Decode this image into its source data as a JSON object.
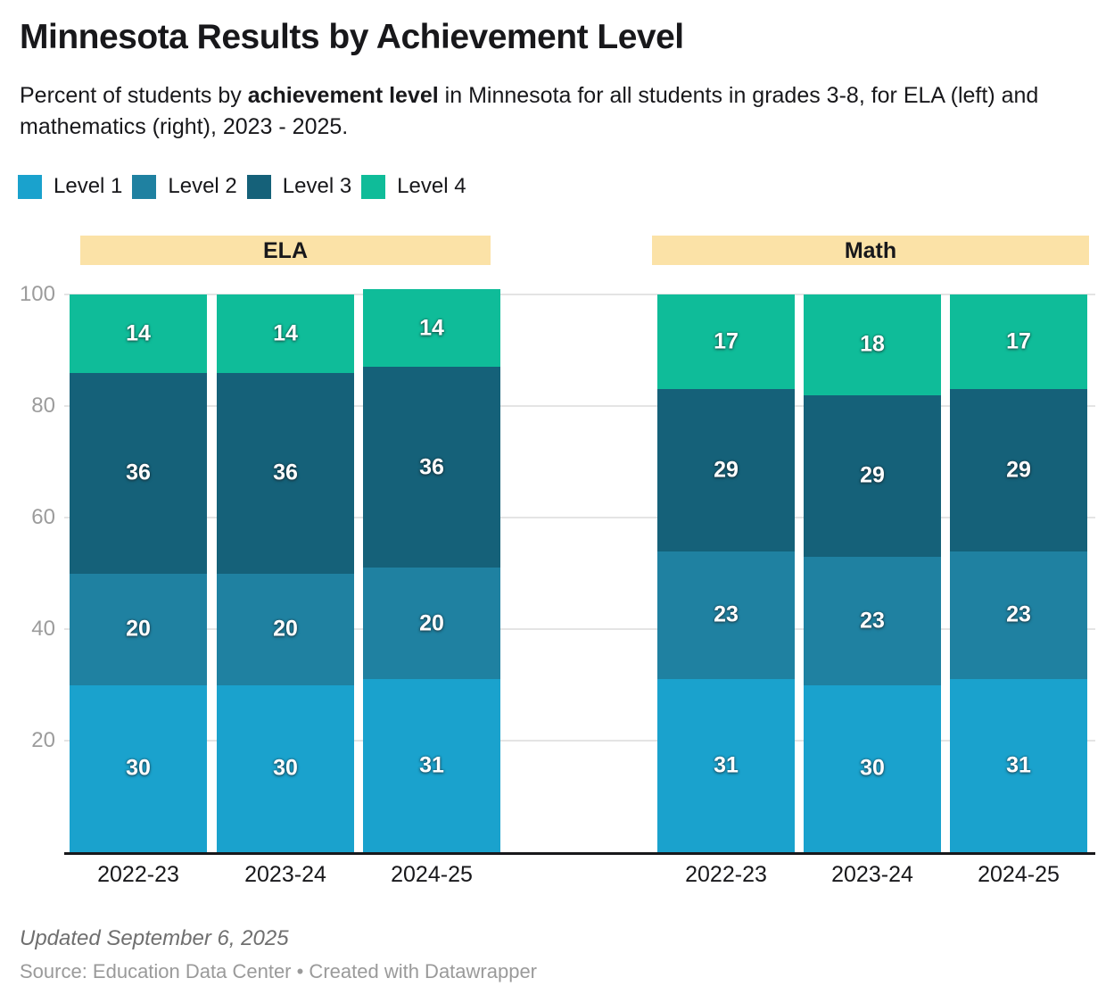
{
  "header": {
    "title": "Minnesota Results by Achievement Level",
    "subtitle_prefix": "Percent of students by ",
    "subtitle_bold": "achievement level",
    "subtitle_suffix": " in Minnesota for all students in grades 3-8, for ELA (left) and mathematics (right), 2023 - 2025."
  },
  "legend": {
    "items": [
      {
        "label": "Level 1",
        "color": "#1aa2cd"
      },
      {
        "label": "Level 2",
        "color": "#1f81a1"
      },
      {
        "label": "Level 3",
        "color": "#156179"
      },
      {
        "label": "Level 4",
        "color": "#0fbc99"
      }
    ]
  },
  "footer": {
    "updated": "Updated September 6, 2025",
    "source": "Source: Education Data Center • Created with Datawrapper"
  },
  "chart_data": {
    "type": "bar",
    "stacked": true,
    "title": "Minnesota Results by Achievement Level",
    "xlabel": "",
    "ylabel": "",
    "ylim": [
      0,
      100
    ],
    "yticks": [
      20,
      40,
      60,
      80,
      100
    ],
    "grid": true,
    "legend_position": "top",
    "panel_header_color": "#fbe2a7",
    "panels": [
      {
        "label": "ELA",
        "categories": [
          "2022-23",
          "2023-24",
          "2024-25"
        ],
        "series": [
          {
            "name": "Level 1",
            "color": "#1aa2cd",
            "values": [
              30,
              30,
              31
            ]
          },
          {
            "name": "Level 2",
            "color": "#1f81a1",
            "values": [
              20,
              20,
              20
            ]
          },
          {
            "name": "Level 3",
            "color": "#156179",
            "values": [
              36,
              36,
              36
            ]
          },
          {
            "name": "Level 4",
            "color": "#0fbc99",
            "values": [
              14,
              14,
              14
            ]
          }
        ]
      },
      {
        "label": "Math",
        "categories": [
          "2022-23",
          "2023-24",
          "2024-25"
        ],
        "series": [
          {
            "name": "Level 1",
            "color": "#1aa2cd",
            "values": [
              31,
              30,
              31
            ]
          },
          {
            "name": "Level 2",
            "color": "#1f81a1",
            "values": [
              23,
              23,
              23
            ]
          },
          {
            "name": "Level 3",
            "color": "#156179",
            "values": [
              29,
              29,
              29
            ]
          },
          {
            "name": "Level 4",
            "color": "#0fbc99",
            "values": [
              17,
              18,
              17
            ]
          }
        ]
      }
    ]
  }
}
